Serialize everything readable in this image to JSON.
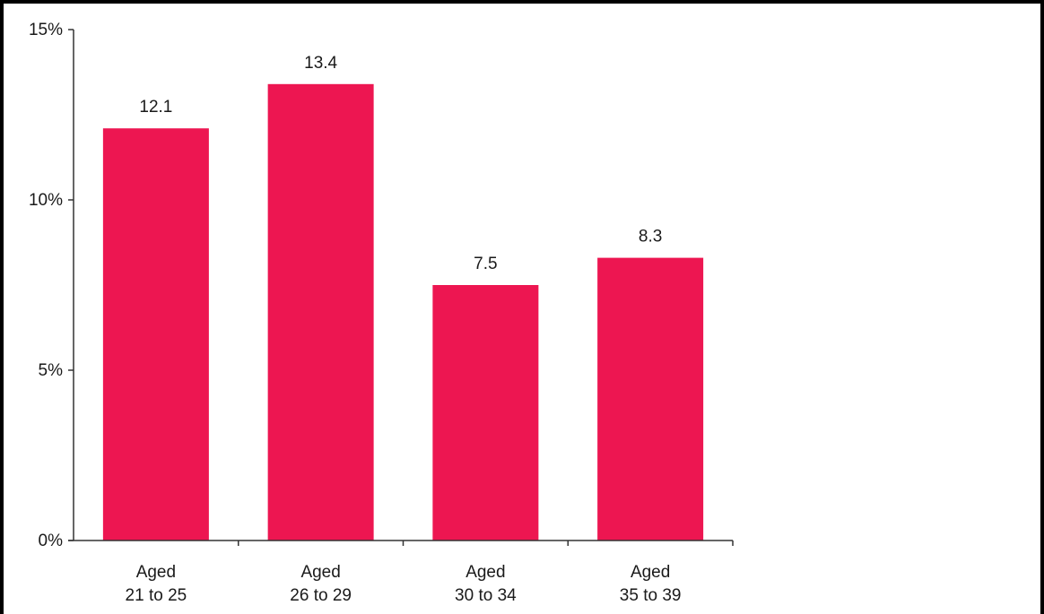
{
  "chart_data": {
    "type": "bar",
    "categories": [
      [
        "Aged",
        "21 to 25"
      ],
      [
        "Aged",
        "26 to 29"
      ],
      [
        "Aged",
        "30 to 34"
      ],
      [
        "Aged",
        "35 to 39"
      ]
    ],
    "values": [
      12.1,
      13.4,
      7.5,
      8.3
    ],
    "value_labels": [
      "12.1",
      "13.4",
      "7.5",
      "8.3"
    ],
    "title": "",
    "xlabel": "",
    "ylabel": "",
    "ylim": [
      0,
      15
    ],
    "y_ticks": [
      0,
      5,
      10,
      15
    ],
    "y_tick_labels": [
      "0%",
      "5%",
      "10%",
      "15%"
    ],
    "grid": false,
    "legend": "none",
    "colors": {
      "bar": "#ed1651",
      "axis": "#333333",
      "frame": "#000000"
    }
  }
}
